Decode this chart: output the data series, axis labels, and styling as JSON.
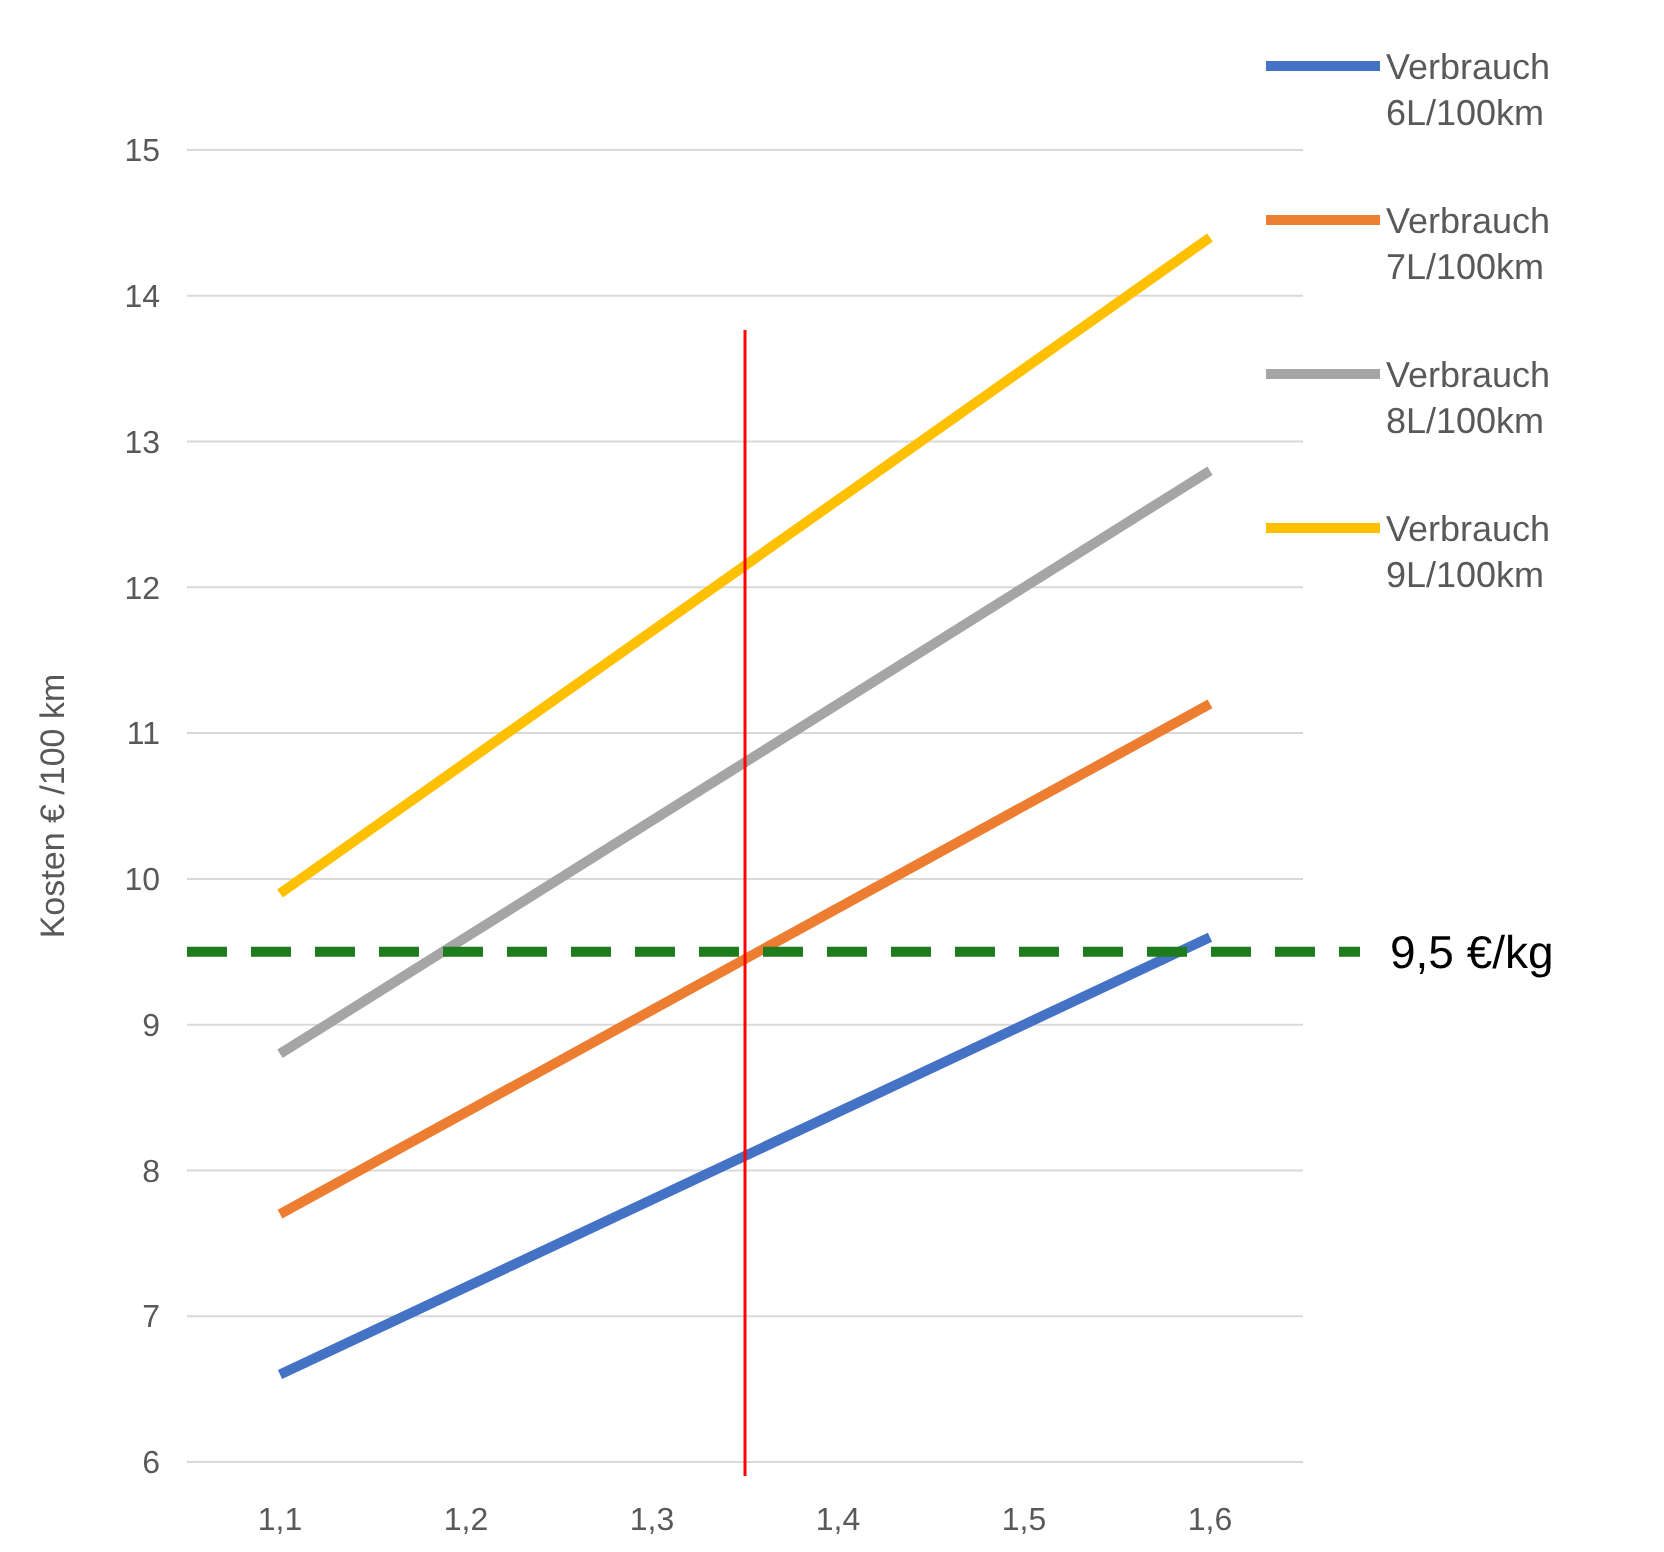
{
  "chart_data": {
    "type": "line",
    "ylabel": "Kosten € /100 km",
    "x": [
      1.1,
      1.6
    ],
    "xlim": [
      1.05,
      1.65
    ],
    "xticks": [
      {
        "value": 1.1,
        "label": "1,1"
      },
      {
        "value": 1.2,
        "label": "1,2"
      },
      {
        "value": 1.3,
        "label": "1,3"
      },
      {
        "value": 1.4,
        "label": "1,4"
      },
      {
        "value": 1.5,
        "label": "1,5"
      },
      {
        "value": 1.6,
        "label": "1,6"
      }
    ],
    "ylim": [
      6,
      15
    ],
    "yticks": [
      6,
      7,
      8,
      9,
      10,
      11,
      12,
      13,
      14,
      15
    ],
    "grid": "y",
    "legend": "top right",
    "marker": "none",
    "line_style": "solid",
    "series": [
      {
        "name": "Verbrauch 6L/100km",
        "color": "#4472c4",
        "values": [
          6.6,
          9.6
        ]
      },
      {
        "name": "Verbrauch 7L/100km",
        "color": "#ed7d31",
        "values": [
          7.7,
          11.2
        ]
      },
      {
        "name": "Verbrauch 8L/100km",
        "color": "#a5a5a5",
        "values": [
          8.8,
          12.8
        ]
      },
      {
        "name": "Verbrauch 9L/100km",
        "color": "#ffc000",
        "values": [
          9.9,
          14.4
        ]
      }
    ],
    "ref_lines": [
      {
        "axis": "y",
        "value": 9.5,
        "label": "9,5 €/kg",
        "color": "#1e7b1e",
        "line_style": "dashed"
      },
      {
        "axis": "x",
        "value": 1.35,
        "color": "#ff0000",
        "line_style": "solid"
      }
    ]
  }
}
